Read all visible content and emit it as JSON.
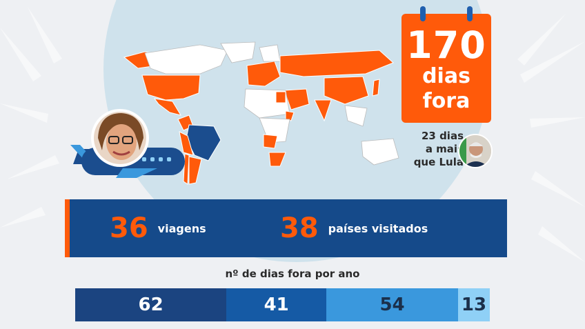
{
  "calendar": {
    "days": "170",
    "line1": "dias",
    "line2": "fora"
  },
  "comparison": {
    "line1": "23 dias",
    "line2": "a mais",
    "line3": "que Lula"
  },
  "stats": {
    "trips_value": "36",
    "trips_label": "viagens",
    "countries_value": "38",
    "countries_label": "países visitados"
  },
  "yearly": {
    "title": "nº de dias fora por ano",
    "segments": [
      {
        "value": 62,
        "label": "62",
        "color": "#1b4480",
        "text_color": "#ffffff"
      },
      {
        "value": 41,
        "label": "41",
        "color": "#155aa5",
        "text_color": "#ffffff"
      },
      {
        "value": 54,
        "label": "54",
        "color": "#3a98dd",
        "text_color": "#1b2f4a"
      },
      {
        "value": 13,
        "label": "13",
        "color": "#8fd0f6",
        "text_color": "#1b2f4a"
      }
    ]
  },
  "colors": {
    "accent": "#ff5a0a",
    "navy": "#154a8a",
    "globe": "#cfe2ec",
    "map_visited": "#ff5a0a",
    "map_brazil": "#1b4d8e"
  },
  "icons": [
    "calendar-icon",
    "airplane-icon",
    "world-map"
  ]
}
